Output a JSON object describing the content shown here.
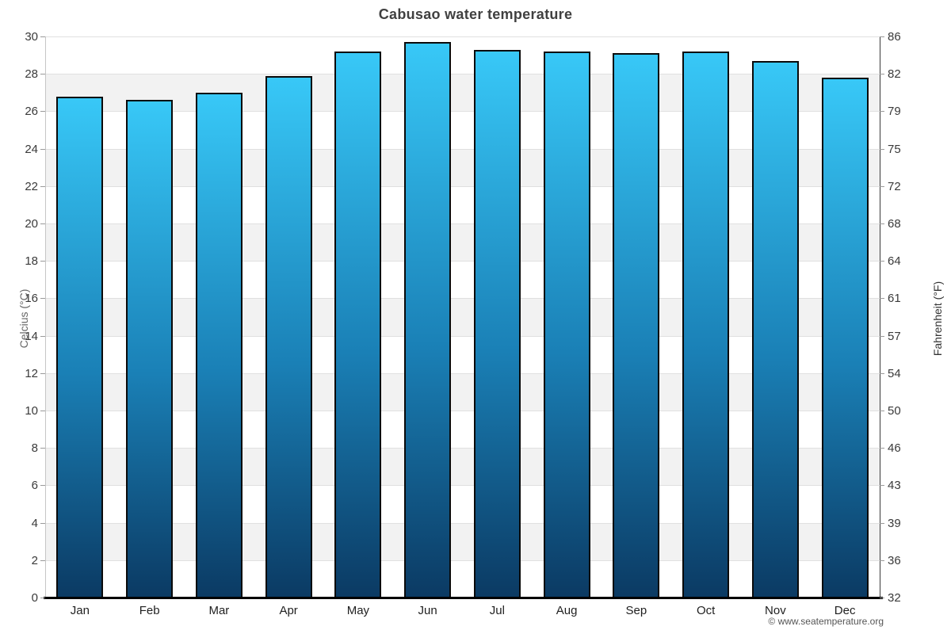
{
  "title": "Cabusao water temperature",
  "copyright": "© www.seatemperature.org",
  "y_axis_left": {
    "label": "Celcius (°C)",
    "ticks": [
      30,
      28,
      26,
      24,
      22,
      20,
      18,
      16,
      14,
      12,
      10,
      8,
      6,
      4,
      2,
      0
    ]
  },
  "y_axis_right": {
    "label": "Fahrenheit (°F)",
    "ticks": [
      86,
      82,
      79,
      75,
      72,
      68,
      64,
      61,
      57,
      54,
      50,
      46,
      43,
      39,
      36,
      32
    ]
  },
  "chart_data": {
    "type": "bar",
    "title": "Cabusao water temperature",
    "categories": [
      "Jan",
      "Feb",
      "Mar",
      "Apr",
      "May",
      "Jun",
      "Jul",
      "Aug",
      "Sep",
      "Oct",
      "Nov",
      "Dec"
    ],
    "values": [
      26.8,
      26.6,
      27.0,
      27.9,
      29.2,
      29.7,
      29.3,
      29.2,
      29.1,
      29.2,
      28.7,
      27.8
    ],
    "xlabel": "",
    "ylabel_left": "Celcius (°C)",
    "ylabel_right": "Fahrenheit (°F)",
    "ylim": [
      0,
      30
    ],
    "y_tick_step": 2,
    "grid": true,
    "legend": "none",
    "colors": {
      "bar_gradient_top": "#38c8f7",
      "bar_gradient_mid": "#1a80b6",
      "bar_gradient_bottom": "#0b3a63",
      "bar_border": "#0a0a0a",
      "band": "#f2f2f2",
      "gridline": "#e0e0e0",
      "title_text": "#404040",
      "tick_text": "#3a3a3a"
    }
  }
}
